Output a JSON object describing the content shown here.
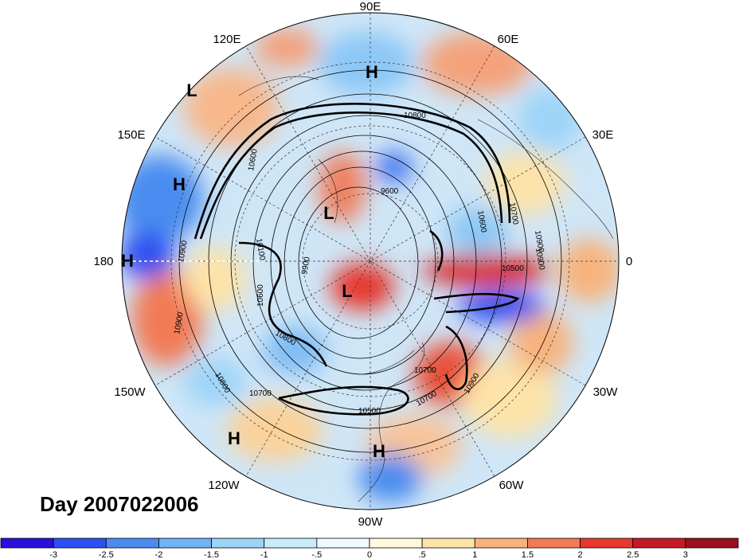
{
  "title": "Day 2007022006",
  "longitude_labels": [
    "90E",
    "60E",
    "30E",
    "0",
    "30W",
    "60W",
    "90W",
    "120W",
    "150W",
    "180",
    "150E",
    "120E"
  ],
  "pressure_centers": [
    "H",
    "H",
    "H",
    "H",
    "H",
    "L",
    "L",
    "L"
  ],
  "contour_labels": [
    "10900",
    "10600",
    "10700",
    "10500",
    "10700",
    "10900",
    "10800",
    "10700",
    "10800",
    "10600",
    "10900",
    "9600",
    "9900",
    "10100",
    "10600",
    "10900",
    "10500",
    "10800",
    "10700",
    "10900"
  ],
  "colorbar": {
    "ticks": [
      "-3",
      "-2.5",
      "-2",
      "-1.5",
      "-1",
      "-.5",
      "0",
      ".5",
      "1",
      "1.5",
      "2",
      "2.5",
      "3"
    ],
    "colors": [
      "#2a10d8",
      "#2f4ff0",
      "#4a8cf0",
      "#6fb4f4",
      "#9cd4f8",
      "#c9ecfb",
      "#eefaff",
      "#fff8dc",
      "#fde3a8",
      "#f8b27c",
      "#f27a55",
      "#e6382f",
      "#c41a26",
      "#9c0f1e"
    ]
  }
}
